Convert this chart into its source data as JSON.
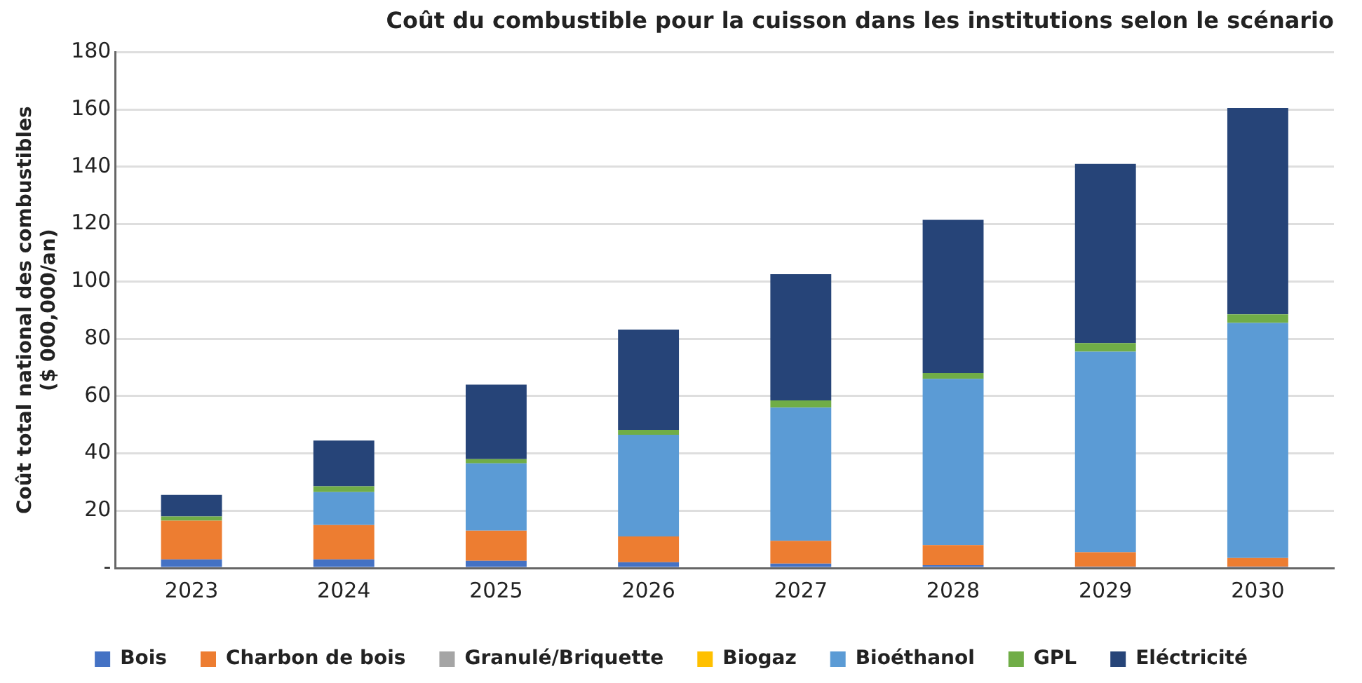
{
  "chart_data": {
    "type": "bar",
    "stacked": true,
    "title": "Coût du combustible pour la cuisson dans les institutions selon le scénario",
    "ylabel": "Coût total national des combustibles\n($ 000,000/an)",
    "categories": [
      "2023",
      "2024",
      "2025",
      "2026",
      "2027",
      "2028",
      "2029",
      "2030"
    ],
    "series": [
      {
        "name": "Bois",
        "color": "#4472c4",
        "values": [
          3,
          3,
          2.5,
          2,
          1.5,
          1,
          0.5,
          0.5
        ]
      },
      {
        "name": "Charbon de bois",
        "color": "#ed7d31",
        "values": [
          13.5,
          12,
          10.5,
          9,
          8,
          7,
          5,
          3
        ]
      },
      {
        "name": "Granulé/Briquette",
        "color": "#a5a5a5",
        "values": [
          0,
          0,
          0,
          0,
          0,
          0,
          0,
          0
        ]
      },
      {
        "name": "Biogaz",
        "color": "#ffc000",
        "values": [
          0,
          0,
          0,
          0,
          0,
          0,
          0,
          0
        ]
      },
      {
        "name": "Bioéthanol",
        "color": "#5b9bd5",
        "values": [
          0,
          11.5,
          23.5,
          35.5,
          46.5,
          58,
          70,
          82
        ]
      },
      {
        "name": "GPL",
        "color": "#70ad47",
        "values": [
          1.5,
          2,
          1.5,
          1.7,
          2.5,
          2,
          3,
          3
        ]
      },
      {
        "name": "Eléctricité",
        "color": "#264478",
        "values": [
          7.5,
          16,
          26,
          35,
          44,
          53.5,
          62.5,
          72
        ]
      }
    ],
    "ylim": [
      0,
      180
    ],
    "yticks": [
      {
        "value": 0,
        "label": "-"
      },
      20,
      40,
      60,
      80,
      100,
      120,
      140,
      160,
      180
    ],
    "grid": "y",
    "legend": "bottom"
  }
}
